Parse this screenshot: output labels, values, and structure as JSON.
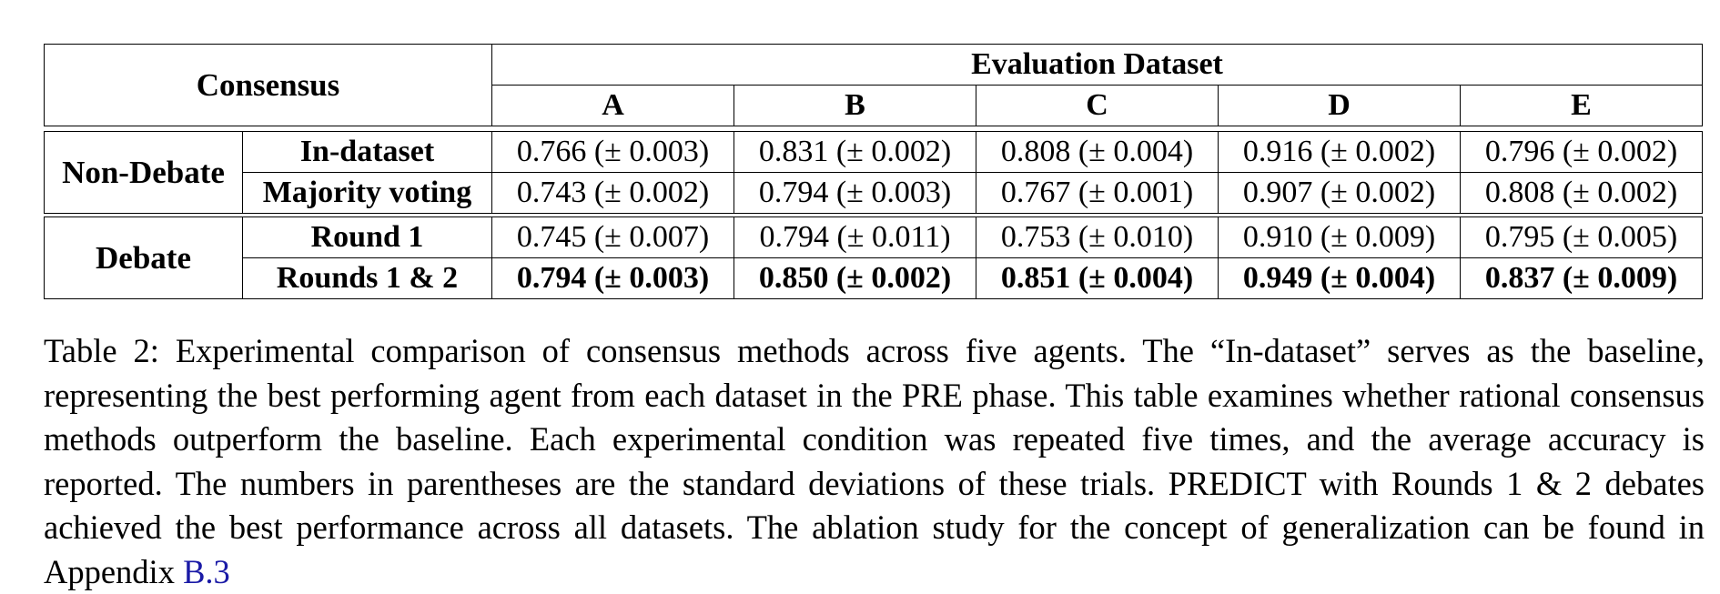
{
  "table": {
    "corner_label": "Consensus",
    "group_header": "Evaluation Dataset",
    "columns": [
      "A",
      "B",
      "C",
      "D",
      "E"
    ],
    "groups": [
      {
        "name": "Non-Debate",
        "rows": [
          {
            "method": "In-dataset",
            "values": [
              "0.766 (± 0.003)",
              "0.831 (± 0.002)",
              "0.808 (± 0.004)",
              "0.916 (± 0.002)",
              "0.796 (± 0.002)"
            ]
          },
          {
            "method": "Majority voting",
            "values": [
              "0.743 (± 0.002)",
              "0.794 (± 0.003)",
              "0.767 (± 0.001)",
              "0.907 (± 0.002)",
              "0.808 (± 0.002)"
            ]
          }
        ]
      },
      {
        "name": "Debate",
        "rows": [
          {
            "method": "Round 1",
            "values": [
              "0.745 (± 0.007)",
              "0.794 (± 0.011)",
              "0.753 (± 0.010)",
              "0.910 (± 0.009)",
              "0.795 (± 0.005)"
            ]
          },
          {
            "method": "Rounds 1 & 2",
            "values": [
              "0.794 (± 0.003)",
              "0.850 (± 0.002)",
              "0.851 (± 0.004)",
              "0.949 (± 0.004)",
              "0.837 (± 0.009)"
            ]
          }
        ]
      }
    ]
  },
  "caption": {
    "text": "Table 2: Experimental comparison of consensus methods across five agents. The “In-dataset” serves as the baseline, representing the best performing agent from each dataset in the PRE phase. This table examines whether rational consensus methods outperform the baseline. Each experimental condition was repeated five times, and the average accuracy is reported. The numbers in parentheses are the standard deviations of these trials. PREDICT with Rounds 1 & 2 debates achieved the best performance across all datasets. The ablation study for the concept of generalization can be found in Appendix ",
    "ref": "B.3"
  }
}
